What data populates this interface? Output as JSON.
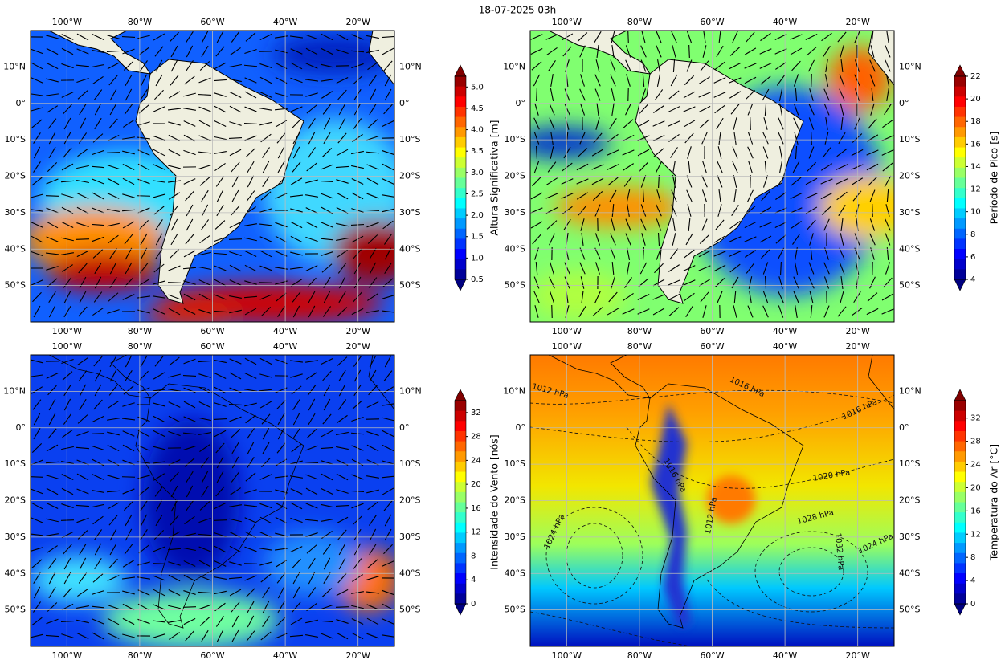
{
  "title": "18-07-2025 03h",
  "colormap": "jet",
  "xlim": [
    -110,
    -10
  ],
  "ylim": [
    -60,
    20
  ],
  "grid": true,
  "lon_ticks": [
    {
      "value": -100,
      "label": "100°W"
    },
    {
      "value": -80,
      "label": "80°W"
    },
    {
      "value": -60,
      "label": "60°W"
    },
    {
      "value": -40,
      "label": "40°W"
    },
    {
      "value": -20,
      "label": "20°W"
    }
  ],
  "lat_ticks": [
    {
      "value": 10,
      "label": "10°N"
    },
    {
      "value": 0,
      "label": "0°"
    },
    {
      "value": -10,
      "label": "10°S"
    },
    {
      "value": -20,
      "label": "20°S"
    },
    {
      "value": -30,
      "label": "30°S"
    },
    {
      "value": -40,
      "label": "40°S"
    },
    {
      "value": -50,
      "label": "50°S"
    }
  ],
  "panels": [
    {
      "colorbar_label": "Altura Significativa [m]",
      "cbar_lim": [
        0.5,
        5.25
      ],
      "cbar_ticks": [
        0.5,
        {
          "value": 1,
          "label": "1.0"
        },
        1.5,
        {
          "value": 2,
          "label": "2.0"
        },
        2.5,
        {
          "value": 3,
          "label": "3.0"
        },
        3.5,
        {
          "value": 4,
          "label": "4.0"
        },
        4.5,
        {
          "value": 5,
          "label": "5.0"
        }
      ]
    },
    {
      "colorbar_label": "Período de Pico [s]",
      "cbar_lim": [
        4,
        22
      ],
      "cbar_ticks": [
        4,
        6,
        8,
        10,
        12,
        14,
        16,
        18,
        20,
        22
      ]
    },
    {
      "colorbar_label": "Intensidade do Vento [nós]",
      "cbar_lim": [
        0,
        34
      ],
      "cbar_ticks": [
        0,
        4,
        8,
        12,
        16,
        20,
        24,
        28,
        32
      ]
    },
    {
      "colorbar_label": "Temperatura do Ar [°C]",
      "cbar_lim": [
        0,
        35
      ],
      "cbar_ticks": [
        0,
        4,
        8,
        12,
        16,
        20,
        24,
        28,
        32
      ],
      "contour_labels": [
        "1012 hPa",
        "1016 hPa",
        "1016 hPa",
        "1020 hPa",
        "1024 hPa",
        "1028 hPa",
        "1032 hPa",
        "1024 hPa",
        "1012 hPa",
        "1016 hPa"
      ]
    }
  ]
}
